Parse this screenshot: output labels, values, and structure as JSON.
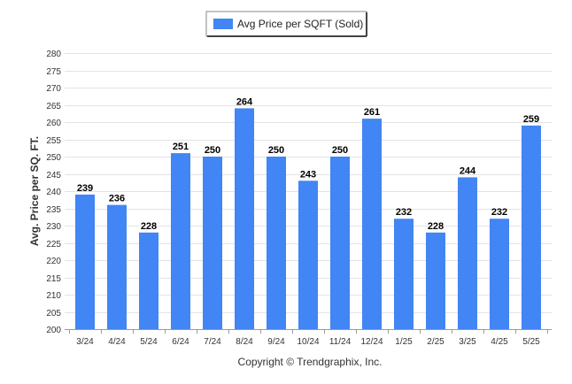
{
  "chart_data": {
    "type": "bar",
    "categories": [
      "3/24",
      "4/24",
      "5/24",
      "6/24",
      "7/24",
      "8/24",
      "9/24",
      "10/24",
      "11/24",
      "12/24",
      "1/25",
      "2/25",
      "3/25",
      "4/25",
      "5/25"
    ],
    "series": [
      {
        "name": "Avg Price per SQFT (Sold)",
        "values": [
          239,
          236,
          228,
          251,
          250,
          264,
          250,
          243,
          250,
          261,
          232,
          228,
          244,
          232,
          259
        ],
        "color": "#4285f4"
      }
    ],
    "ylabel": "Avg. Price per SQ. FT.",
    "xlabel": "",
    "ylim": [
      200,
      280
    ],
    "ytick_step": 5,
    "grid": true,
    "legend_placement": "top-center",
    "data_labels": true
  },
  "footer": {
    "copyright": "Copyright © Trendgraphix, Inc."
  }
}
